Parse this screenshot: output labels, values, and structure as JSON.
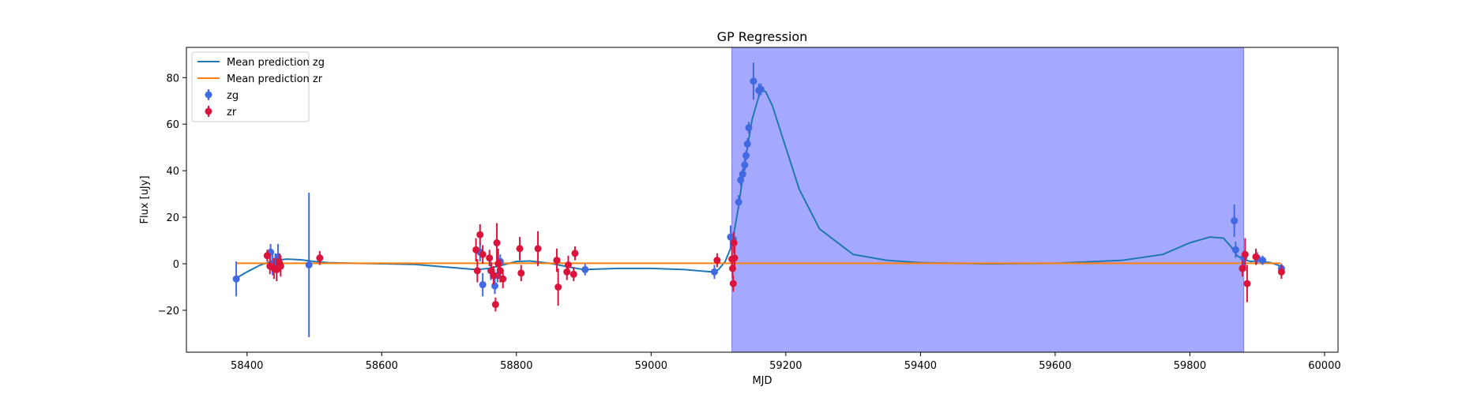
{
  "chart_data": {
    "type": "scatter",
    "title": "GP Regression",
    "xlabel": "MJD",
    "ylabel": "Flux [uJy]",
    "xlim": [
      58310,
      60020
    ],
    "ylim": [
      -38,
      93
    ],
    "xticks": [
      58400,
      58600,
      58800,
      59000,
      59200,
      59400,
      59600,
      59800,
      60000
    ],
    "yticks": [
      -20,
      0,
      20,
      40,
      60,
      80
    ],
    "grid": false,
    "legend_position": "top-left",
    "shaded_region": {
      "x0": 59120,
      "x1": 59880,
      "color": "#a5a8ff"
    },
    "legend": [
      {
        "label": "Mean prediction zg",
        "kind": "line",
        "color": "#1f77b4"
      },
      {
        "label": "Mean prediction zr",
        "kind": "line",
        "color": "#ff7f0e"
      },
      {
        "label": "zg",
        "kind": "errorbar",
        "color": "#4169e1"
      },
      {
        "label": "zr",
        "kind": "errorbar",
        "color": "#dc143c"
      }
    ],
    "series": [
      {
        "name": "Mean prediction zg",
        "kind": "line",
        "color": "#1f77b4",
        "x": [
          58385,
          58400,
          58420,
          58440,
          58460,
          58480,
          58500,
          58520,
          58560,
          58600,
          58650,
          58700,
          58740,
          58760,
          58780,
          58800,
          58820,
          58850,
          58880,
          58900,
          58950,
          59000,
          59050,
          59090,
          59100,
          59110,
          59120,
          59130,
          59140,
          59150,
          59160,
          59165,
          59170,
          59180,
          59200,
          59220,
          59250,
          59300,
          59350,
          59400,
          59500,
          59600,
          59700,
          59760,
          59800,
          59830,
          59850,
          59862,
          59870,
          59880,
          59890,
          59900,
          59920,
          59935
        ],
        "y": [
          -6,
          -3.5,
          -0.5,
          1.5,
          2.0,
          1.7,
          1.0,
          0.5,
          0.2,
          0.0,
          -0.3,
          -1.5,
          -2.5,
          -2.0,
          -0.5,
          1.0,
          1.2,
          0.2,
          -1.5,
          -2.5,
          -2.0,
          -2.0,
          -2.5,
          -3.5,
          -2.5,
          1.0,
          8.0,
          25.0,
          45.0,
          62.0,
          72.0,
          74.5,
          74.0,
          68.0,
          50.0,
          32.0,
          15.0,
          4.0,
          1.5,
          0.5,
          0.0,
          0.2,
          1.5,
          4.0,
          9.0,
          11.5,
          11.0,
          7.0,
          3.5,
          1.8,
          1.0,
          1.2,
          0.5,
          -1.0
        ]
      },
      {
        "name": "Mean prediction zr",
        "kind": "line",
        "color": "#ff7f0e",
        "x": [
          58385,
          59935
        ],
        "y": [
          0.2,
          0.2
        ]
      },
      {
        "name": "zg",
        "kind": "errorbar",
        "color": "#4169e1",
        "x": [
          58384,
          58435,
          58438,
          58442,
          58446,
          58492,
          58746,
          58750,
          58762,
          58768,
          58772,
          58776,
          58902,
          59094,
          59118,
          59122,
          59130,
          59133,
          59136,
          59139,
          59141,
          59143,
          59145,
          59152,
          59160,
          59163,
          59866,
          59868,
          59880,
          59900,
          59908,
          59936
        ],
        "y": [
          -6.5,
          5.0,
          0.0,
          1.0,
          3.0,
          -0.5,
          5.0,
          -9.0,
          -3.0,
          -9.5,
          -5.0,
          1.0,
          -2.5,
          -3.5,
          11.5,
          10.5,
          26.5,
          36.0,
          38.5,
          42.5,
          46.5,
          51.5,
          58.5,
          78.5,
          74.5,
          75.0,
          18.5,
          6.0,
          2.5,
          2.5,
          1.5,
          -2.0
        ],
        "err": [
          7.5,
          3.5,
          5.0,
          3.5,
          5.5,
          31.0,
          4.0,
          5.0,
          4.0,
          3.5,
          3.0,
          3.0,
          2.5,
          3.0,
          5.0,
          3.0,
          3.0,
          2.5,
          2.5,
          2.5,
          2.0,
          2.5,
          2.5,
          8.0,
          3.0,
          2.5,
          7.0,
          3.5,
          3.0,
          2.5,
          2.0,
          2.0
        ]
      },
      {
        "name": "zr",
        "kind": "errorbar",
        "color": "#dc143c",
        "x": [
          58430,
          58434,
          58440,
          58444,
          58448,
          58450,
          58508,
          58740,
          58742,
          58746,
          58750,
          58760,
          58763,
          58766,
          58769,
          58771,
          58773,
          58776,
          58780,
          58805,
          58807,
          58832,
          58860,
          58862,
          58875,
          58877,
          58885,
          58887,
          59098,
          59120,
          59121,
          59122,
          59123,
          59124,
          59878,
          59882,
          59885,
          59898,
          59936
        ],
        "y": [
          3.5,
          -1.0,
          -2.0,
          -2.5,
          0.5,
          -1.0,
          2.5,
          6.0,
          -3.0,
          12.5,
          4.0,
          2.5,
          -3.0,
          -5.0,
          -17.5,
          9.0,
          0.0,
          -3.0,
          -6.5,
          6.5,
          -4.0,
          6.5,
          1.5,
          -10.0,
          -3.5,
          -0.5,
          -4.5,
          4.5,
          1.5,
          2.0,
          -2.0,
          -8.5,
          9.0,
          2.5,
          -2.0,
          4.0,
          -8.5,
          3.0,
          -3.5
        ],
        "err": [
          2.5,
          3.5,
          4.5,
          5.0,
          4.0,
          4.5,
          3.0,
          5.0,
          5.0,
          4.5,
          4.0,
          3.5,
          3.5,
          4.0,
          3.0,
          8.5,
          6.5,
          5.0,
          4.0,
          5.0,
          3.5,
          7.5,
          5.0,
          8.0,
          3.5,
          4.0,
          3.0,
          3.0,
          3.0,
          5.5,
          4.0,
          3.5,
          4.5,
          5.0,
          3.5,
          7.0,
          8.0,
          3.5,
          3.0
        ]
      }
    ]
  }
}
